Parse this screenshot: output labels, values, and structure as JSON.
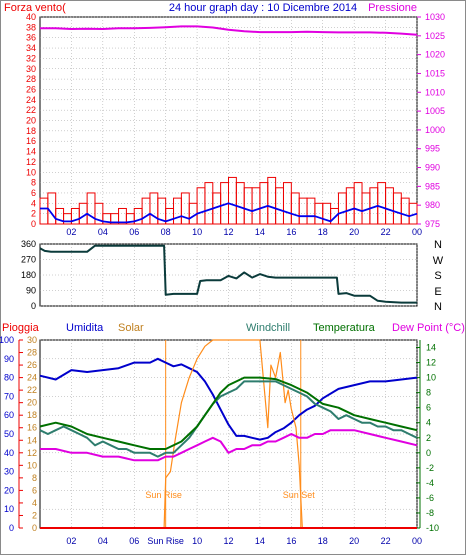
{
  "colors": {
    "wind_avg": "#0000ee",
    "wind_gust": "#ee0000",
    "pressure": "#e000e0",
    "direction": "#0b3b3b",
    "rain": "#ee0000",
    "humidity": "#0000cc",
    "solar": "#ff8c1a",
    "windchill": "#2e7d6e",
    "temperature": "#007000",
    "dewpoint": "#e000e0",
    "grid": "#a0a0a0",
    "axis": "#000000"
  },
  "header": {
    "left_label": "Forza vento(",
    "title": "24 hour graph day : 10 Dicembre 2014",
    "right_label": "Pressione"
  },
  "legend_row": {
    "rain": "Pioggia",
    "humidity": "Umidita",
    "solar": "Solar",
    "windchill": "Windchill",
    "temperature": "Temperatura",
    "dewpoint": "Dew Point (°C)"
  },
  "annotations": {
    "sunrise": "Sun Rise",
    "sunset": "Sun Set"
  },
  "chart_data": [
    {
      "type": "line",
      "panel": "wind_pressure",
      "title": "24 hour graph day : 10 Dicembre 2014",
      "ylabel_left": "Forza vento(",
      "ylabel_right": "Pressione",
      "x_ticks": [
        "02",
        "04",
        "06",
        "08",
        "10",
        "12",
        "14",
        "16",
        "18",
        "20",
        "22",
        "00"
      ],
      "x_tick_hours": [
        2,
        4,
        6,
        8,
        10,
        12,
        14,
        16,
        18,
        20,
        22,
        24
      ],
      "ylim_left": [
        0,
        40
      ],
      "y_ticks_left": [
        0,
        2,
        4,
        6,
        8,
        10,
        12,
        14,
        16,
        18,
        20,
        22,
        24,
        26,
        28,
        30,
        32,
        34,
        36,
        38,
        40
      ],
      "ylim_right": [
        975,
        1030
      ],
      "y_ticks_right": [
        975,
        980,
        985,
        990,
        995,
        1000,
        1005,
        1010,
        1015,
        1020,
        1025,
        1030
      ],
      "grid": true,
      "series": [
        {
          "name": "Forza vento(",
          "axis": "left",
          "x": [
            0,
            0.5,
            1,
            1.5,
            2,
            2.5,
            3,
            3.5,
            4,
            4.5,
            5,
            5.5,
            6,
            6.5,
            7,
            7.5,
            8,
            8.5,
            9,
            9.5,
            10,
            10.5,
            11,
            11.5,
            12,
            12.5,
            13,
            13.5,
            14,
            14.5,
            15,
            15.5,
            16,
            16.5,
            17,
            17.5,
            18,
            18.5,
            19,
            19.5,
            20,
            20.5,
            21,
            21.5,
            22,
            22.5,
            23,
            23.5,
            24
          ],
          "values": [
            3,
            3,
            1,
            0.5,
            0.5,
            1,
            2,
            1,
            0.5,
            0.3,
            0.3,
            0.3,
            0.5,
            1,
            2,
            1,
            0.5,
            1,
            1.5,
            1,
            2,
            2.5,
            3,
            3.5,
            4,
            3.5,
            3,
            2.5,
            3,
            3.5,
            3,
            2.5,
            2,
            1.5,
            1.5,
            1.5,
            1,
            0.5,
            2,
            2.5,
            3,
            2.5,
            3,
            3.5,
            3,
            2.5,
            2,
            1.5,
            2
          ]
        },
        {
          "name": "Gust",
          "axis": "left",
          "x": [
            0,
            0.5,
            1,
            1.5,
            2,
            2.5,
            3,
            3.5,
            4,
            4.5,
            5,
            5.5,
            6,
            6.5,
            7,
            7.5,
            8,
            8.5,
            9,
            9.5,
            10,
            10.5,
            11,
            11.5,
            12,
            12.5,
            13,
            13.5,
            14,
            14.5,
            15,
            15.5,
            16,
            16.5,
            17,
            17.5,
            18,
            18.5,
            19,
            19.5,
            20,
            20.5,
            21,
            21.5,
            22,
            22.5,
            23,
            23.5,
            24
          ],
          "values": [
            5,
            6,
            3,
            2,
            3,
            4,
            6,
            4,
            2,
            2,
            3,
            2,
            3,
            5,
            6,
            5,
            3,
            5,
            6,
            4,
            7,
            8,
            6,
            8,
            9,
            8,
            7,
            7,
            8,
            9,
            7,
            8,
            6,
            5,
            5,
            4,
            4,
            3,
            6,
            7,
            8,
            6,
            7,
            8,
            7,
            6,
            5,
            4,
            5
          ]
        },
        {
          "name": "Pressione",
          "axis": "right",
          "x": [
            0,
            1,
            2,
            3,
            4,
            5,
            6,
            7,
            8,
            9,
            10,
            11,
            12,
            13,
            14,
            15,
            16,
            17,
            18,
            19,
            20,
            21,
            22,
            23,
            24
          ],
          "values": [
            1027,
            1027,
            1026.8,
            1026.9,
            1026.8,
            1027,
            1027,
            1027.1,
            1027.3,
            1027.5,
            1027.5,
            1027.2,
            1026.6,
            1026.2,
            1026,
            1026,
            1026,
            1026.1,
            1026,
            1025.9,
            1025.9,
            1025.9,
            1025.8,
            1025.6,
            1025.3
          ]
        }
      ]
    },
    {
      "type": "line",
      "panel": "wind_direction",
      "x_ticks": [],
      "ylim": [
        0,
        360
      ],
      "y_ticks": [
        0,
        90,
        180,
        270,
        360
      ],
      "compass_labels": [
        "N",
        "W",
        "S",
        "E",
        "N"
      ],
      "grid": true,
      "series": [
        {
          "name": "",
          "x": [
            0,
            0.3,
            0.7,
            1,
            2,
            3,
            3.5,
            4,
            5,
            6,
            7,
            7.9,
            8,
            8.5,
            9,
            10,
            10.2,
            10.6,
            11,
            11.5,
            12,
            12.5,
            13,
            13.5,
            14,
            14.5,
            15,
            16,
            17,
            18,
            18.9,
            19,
            19.5,
            20,
            21,
            21.5,
            22,
            23,
            24
          ],
          "values": [
            335,
            320,
            315,
            315,
            315,
            315,
            350,
            350,
            350,
            350,
            350,
            350,
            65,
            70,
            70,
            70,
            145,
            150,
            150,
            150,
            175,
            160,
            195,
            165,
            185,
            170,
            165,
            165,
            165,
            165,
            165,
            70,
            75,
            60,
            60,
            30,
            25,
            20,
            20
          ]
        }
      ]
    },
    {
      "type": "line",
      "panel": "temperature_humidity",
      "x_ticks": [
        "02",
        "04",
        "06",
        "Sun Rise",
        "10",
        "12",
        "14",
        "16",
        "18",
        "20",
        "22",
        "00"
      ],
      "x_tick_hours": [
        2,
        4,
        6,
        8,
        10,
        12,
        14,
        16,
        18,
        20,
        22,
        24
      ],
      "ylim_humidity": [
        0,
        100
      ],
      "y_ticks_humidity": [
        0,
        10,
        20,
        30,
        40,
        50,
        60,
        70,
        80,
        90,
        100
      ],
      "ylim_rain": [
        0,
        30
      ],
      "y_ticks_rain": [
        0,
        2,
        4,
        6,
        8,
        10,
        12,
        14,
        16,
        18,
        20,
        22,
        24,
        26,
        28,
        30
      ],
      "ylim_temp": [
        -10,
        15
      ],
      "y_ticks_temp": [
        -10,
        -8,
        -6,
        -4,
        -2,
        0,
        2,
        4,
        6,
        8,
        10,
        12,
        14
      ],
      "annotations": [
        "Sun Rise",
        "Sun Set"
      ],
      "grid": true,
      "series": [
        {
          "name": "Umidita",
          "axis": "humidity",
          "x": [
            0,
            1,
            2,
            3,
            4,
            5,
            6,
            7,
            7.5,
            8,
            8.5,
            9,
            9.5,
            10,
            10.5,
            11,
            11.5,
            12,
            12.5,
            13,
            13.5,
            14,
            14.5,
            15,
            15.5,
            16,
            16.5,
            17,
            17.5,
            18,
            19,
            20,
            21,
            22,
            23,
            24
          ],
          "values": [
            81,
            79,
            84,
            83,
            84,
            85,
            88,
            88,
            90,
            88,
            86,
            87,
            85,
            83,
            78,
            71,
            63,
            55,
            49,
            49,
            48,
            47,
            48,
            51,
            53,
            56,
            60,
            63,
            65,
            69,
            74,
            76,
            78,
            78,
            79,
            80
          ]
        },
        {
          "name": "Solar",
          "axis": "rain",
          "x": [
            0,
            7.9,
            8,
            8.3,
            8.6,
            9,
            9.5,
            10,
            10.5,
            11,
            11.5,
            12,
            13,
            14,
            14.5,
            14.7,
            15,
            15.3,
            15.6,
            15.8,
            16,
            16.3,
            16.5,
            16.7,
            24
          ],
          "values": [
            0,
            0,
            8,
            9,
            14,
            20,
            24,
            27,
            29,
            30,
            30,
            30,
            30,
            30,
            16,
            26,
            24,
            28,
            20,
            22,
            19,
            16,
            10,
            0,
            0
          ]
        },
        {
          "name": "Windchill",
          "axis": "temp",
          "x": [
            0,
            0.5,
            1,
            1.5,
            2,
            2.5,
            3,
            3.5,
            4,
            4.5,
            5,
            5.5,
            6,
            6.5,
            7,
            7.5,
            8,
            8.5,
            9,
            9.5,
            10,
            10.5,
            11,
            11.5,
            12,
            12.5,
            13,
            13.5,
            14,
            14.5,
            15,
            15.5,
            16,
            16.5,
            17,
            17.5,
            18,
            18.5,
            19,
            19.5,
            20,
            20.5,
            21,
            21.5,
            22,
            22.5,
            23,
            23.5,
            24
          ],
          "values": [
            3,
            2.5,
            3,
            3.5,
            3,
            2.5,
            2,
            1,
            1.5,
            1,
            0.5,
            0.5,
            0,
            0,
            0,
            -0.5,
            0,
            0,
            1,
            2,
            3.5,
            5,
            6.5,
            7.5,
            8,
            8.5,
            9.5,
            9.5,
            9.5,
            9.5,
            9.5,
            9,
            8.5,
            8,
            7.5,
            6.5,
            6,
            5.5,
            4.5,
            5,
            4.5,
            4,
            4,
            3.5,
            3.5,
            3,
            3,
            2.5,
            2
          ]
        },
        {
          "name": "Temperatura",
          "axis": "temp",
          "x": [
            0,
            1,
            2,
            3,
            4,
            5,
            6,
            7,
            8,
            9,
            10,
            10.5,
            11,
            11.5,
            12,
            12.5,
            13,
            14,
            15,
            16,
            17,
            18,
            19,
            20,
            21,
            22,
            23,
            24
          ],
          "values": [
            3.5,
            4,
            3.5,
            2.5,
            2,
            1.5,
            1,
            0.5,
            0.5,
            1.5,
            3.5,
            5,
            6.5,
            8,
            9,
            9.5,
            10,
            10,
            9.8,
            9,
            8,
            6.5,
            6,
            5,
            4.5,
            4,
            3.5,
            3
          ]
        },
        {
          "name": "Dew Point (°C)",
          "axis": "temp",
          "x": [
            0,
            1,
            2,
            3,
            4,
            5,
            6,
            7,
            7.5,
            8,
            8.5,
            9,
            9.5,
            10,
            10.5,
            11,
            11.5,
            12,
            12.5,
            13,
            13.5,
            14,
            14.5,
            15,
            15.5,
            16,
            16.5,
            17,
            17.5,
            18,
            18.5,
            19,
            20,
            21,
            22,
            23,
            24
          ],
          "values": [
            0.5,
            0.5,
            0,
            0,
            -0.5,
            -0.5,
            -1,
            -1,
            -1,
            -0.5,
            -0.5,
            0,
            0.5,
            1,
            1.5,
            2,
            1.5,
            0,
            0.5,
            0.5,
            1,
            1,
            1.5,
            1.5,
            2,
            2.5,
            2,
            2,
            2.5,
            2.5,
            3,
            3,
            3,
            2.5,
            2,
            1.5,
            1
          ]
        },
        {
          "name": "Pioggia",
          "axis": "rain",
          "x": [
            0,
            24
          ],
          "values": [
            0,
            0
          ]
        }
      ]
    }
  ]
}
